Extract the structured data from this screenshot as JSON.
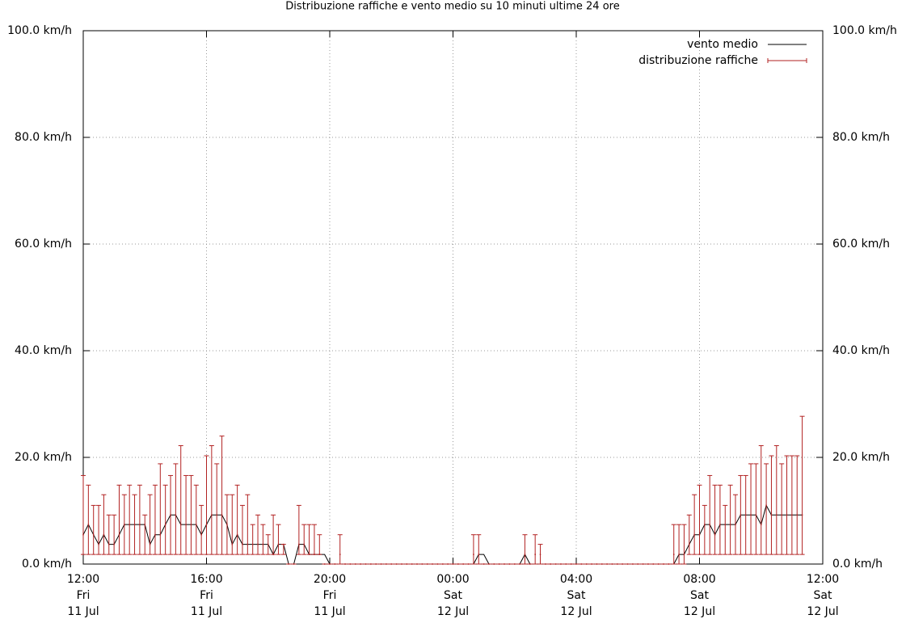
{
  "chart_data": {
    "type": "line-errorbar",
    "title": "Distribuzione raffiche e vento medio su 10 minuti ultime 24 ore",
    "x": [
      "11 Jul 12:00",
      "11 Jul 12:10",
      "11 Jul 12:20",
      "11 Jul 12:30",
      "11 Jul 12:40",
      "11 Jul 12:50",
      "11 Jul 13:00",
      "11 Jul 13:10",
      "11 Jul 13:20",
      "11 Jul 13:30",
      "11 Jul 13:40",
      "11 Jul 13:50",
      "11 Jul 14:00",
      "11 Jul 14:10",
      "11 Jul 14:20",
      "11 Jul 14:30",
      "11 Jul 14:40",
      "11 Jul 14:50",
      "11 Jul 15:00",
      "11 Jul 15:10",
      "11 Jul 15:20",
      "11 Jul 15:30",
      "11 Jul 15:40",
      "11 Jul 15:50",
      "11 Jul 16:00",
      "11 Jul 16:10",
      "11 Jul 16:20",
      "11 Jul 16:30",
      "11 Jul 16:40",
      "11 Jul 16:50",
      "11 Jul 17:00",
      "11 Jul 17:10",
      "11 Jul 17:20",
      "11 Jul 17:30",
      "11 Jul 17:40",
      "11 Jul 17:50",
      "11 Jul 18:00",
      "11 Jul 18:10",
      "11 Jul 18:20",
      "11 Jul 18:30",
      "11 Jul 18:40",
      "11 Jul 18:50",
      "11 Jul 19:00",
      "11 Jul 19:10",
      "11 Jul 19:20",
      "11 Jul 19:30",
      "11 Jul 19:40",
      "11 Jul 19:50",
      "11 Jul 20:00",
      "11 Jul 20:10",
      "11 Jul 20:20",
      "11 Jul 20:30",
      "11 Jul 20:40",
      "11 Jul 20:50",
      "11 Jul 21:00",
      "11 Jul 21:10",
      "11 Jul 21:20",
      "11 Jul 21:30",
      "11 Jul 21:40",
      "11 Jul 21:50",
      "11 Jul 22:00",
      "11 Jul 22:10",
      "11 Jul 22:20",
      "11 Jul 22:30",
      "11 Jul 22:40",
      "11 Jul 22:50",
      "11 Jul 23:00",
      "11 Jul 23:10",
      "11 Jul 23:20",
      "11 Jul 23:30",
      "11 Jul 23:40",
      "11 Jul 23:50",
      "12 Jul 00:00",
      "12 Jul 00:10",
      "12 Jul 00:20",
      "12 Jul 00:30",
      "12 Jul 00:40",
      "12 Jul 00:50",
      "12 Jul 01:00",
      "12 Jul 01:10",
      "12 Jul 01:20",
      "12 Jul 01:30",
      "12 Jul 01:40",
      "12 Jul 01:50",
      "12 Jul 02:00",
      "12 Jul 02:10",
      "12 Jul 02:20",
      "12 Jul 02:30",
      "12 Jul 02:40",
      "12 Jul 02:50",
      "12 Jul 03:00",
      "12 Jul 03:10",
      "12 Jul 03:20",
      "12 Jul 03:30",
      "12 Jul 03:40",
      "12 Jul 03:50",
      "12 Jul 04:00",
      "12 Jul 04:10",
      "12 Jul 04:20",
      "12 Jul 04:30",
      "12 Jul 04:40",
      "12 Jul 04:50",
      "12 Jul 05:00",
      "12 Jul 05:10",
      "12 Jul 05:20",
      "12 Jul 05:30",
      "12 Jul 05:40",
      "12 Jul 05:50",
      "12 Jul 06:00",
      "12 Jul 06:10",
      "12 Jul 06:20",
      "12 Jul 06:30",
      "12 Jul 06:40",
      "12 Jul 06:50",
      "12 Jul 07:00",
      "12 Jul 07:10",
      "12 Jul 07:20",
      "12 Jul 07:30",
      "12 Jul 07:40",
      "12 Jul 07:50",
      "12 Jul 08:00",
      "12 Jul 08:10",
      "12 Jul 08:20",
      "12 Jul 08:30",
      "12 Jul 08:40",
      "12 Jul 08:50",
      "12 Jul 09:00",
      "12 Jul 09:10",
      "12 Jul 09:20",
      "12 Jul 09:30",
      "12 Jul 09:40",
      "12 Jul 09:50",
      "12 Jul 10:00",
      "12 Jul 10:10",
      "12 Jul 10:20",
      "12 Jul 10:30",
      "12 Jul 10:40",
      "12 Jul 10:50",
      "12 Jul 11:00",
      "12 Jul 11:10",
      "12 Jul 11:20",
      "12 Jul 11:30",
      "12 Jul 11:40",
      "12 Jul 11:50",
      "12 Jul 12:00"
    ],
    "series": [
      {
        "name": "vento medio",
        "color": "#000000",
        "values": [
          5.5,
          7.4,
          5.5,
          3.7,
          5.5,
          3.7,
          3.7,
          5.5,
          7.4,
          7.4,
          7.4,
          7.4,
          7.4,
          3.7,
          5.5,
          5.5,
          7.4,
          9.2,
          9.2,
          7.4,
          7.4,
          7.4,
          7.4,
          5.5,
          7.4,
          9.2,
          9.2,
          9.2,
          7.4,
          3.7,
          5.5,
          3.7,
          3.7,
          3.7,
          3.7,
          3.7,
          3.7,
          1.8,
          3.7,
          3.7,
          0,
          0,
          3.7,
          3.7,
          1.8,
          1.8,
          1.8,
          1.8,
          0,
          0,
          0,
          0,
          0,
          0,
          0,
          0,
          0,
          0,
          0,
          0,
          0,
          0,
          0,
          0,
          0,
          0,
          0,
          0,
          0,
          0,
          0,
          0,
          0,
          0,
          0,
          0,
          0,
          1.8,
          1.8,
          0,
          0,
          0,
          0,
          0,
          0,
          0,
          1.8,
          0,
          0,
          0,
          0,
          0,
          0,
          0,
          0,
          0,
          0,
          0,
          0,
          0,
          0,
          0,
          0,
          0,
          0,
          0,
          0,
          0,
          0,
          0,
          0,
          0,
          0,
          0,
          0,
          0,
          1.8,
          1.8,
          3.7,
          5.5,
          5.5,
          7.4,
          7.4,
          5.5,
          7.4,
          7.4,
          7.4,
          7.4,
          9.2,
          9.2,
          9.2,
          9.2,
          7.4,
          11,
          9.2,
          9.2,
          9.2,
          9.2,
          9.2,
          9.2,
          9.2,
          null,
          null,
          null,
          null
        ]
      },
      {
        "name": "distribuzione raffiche",
        "color": "#b22222",
        "values": [
          5.5,
          7.4,
          5.5,
          3.7,
          5.5,
          3.7,
          3.7,
          5.5,
          7.4,
          7.4,
          7.4,
          7.4,
          7.4,
          3.7,
          5.5,
          5.5,
          7.4,
          9.2,
          9.2,
          7.4,
          7.4,
          7.4,
          7.4,
          5.5,
          7.4,
          9.2,
          9.2,
          9.2,
          7.4,
          3.7,
          5.5,
          3.7,
          3.7,
          3.7,
          3.7,
          3.7,
          3.7,
          1.8,
          3.7,
          3.7,
          0,
          0,
          3.7,
          3.7,
          1.8,
          1.8,
          1.8,
          0,
          0,
          0,
          1.8,
          0,
          0,
          0,
          0,
          0,
          0,
          0,
          0,
          0,
          0,
          0,
          0,
          0,
          0,
          0,
          0,
          0,
          0,
          0,
          0,
          0,
          0,
          0,
          0,
          0,
          1.8,
          1.8,
          0,
          0,
          0,
          0,
          0,
          0,
          0,
          0,
          1.8,
          0,
          1.8,
          1.8,
          0,
          0,
          0,
          0,
          0,
          0,
          0,
          0,
          0,
          0,
          0,
          0,
          0,
          0,
          0,
          0,
          0,
          0,
          0,
          0,
          0,
          0,
          0,
          0,
          0,
          1.8,
          1.8,
          1.8,
          3.7,
          5.5,
          5.5,
          7.4,
          7.4,
          5.5,
          7.4,
          7.4,
          7.4,
          7.4,
          9.2,
          9.2,
          9.2,
          9.2,
          7.4,
          11,
          9.2,
          9.2,
          9.2,
          9.2,
          9.2,
          9.2,
          9.2,
          null,
          null,
          null,
          null
        ],
        "low": [
          1.8,
          1.8,
          1.8,
          1.8,
          1.8,
          1.8,
          1.8,
          1.8,
          1.8,
          1.8,
          1.8,
          1.8,
          1.8,
          1.8,
          1.8,
          1.8,
          1.8,
          1.8,
          1.8,
          1.8,
          1.8,
          1.8,
          1.8,
          1.8,
          1.8,
          1.8,
          1.8,
          1.8,
          1.8,
          1.8,
          1.8,
          1.8,
          1.8,
          1.8,
          1.8,
          1.8,
          1.8,
          1.8,
          1.8,
          1.8,
          0,
          0,
          1.8,
          1.8,
          1.8,
          1.8,
          1.8,
          0,
          0,
          0,
          0,
          0,
          0,
          0,
          0,
          0,
          0,
          0,
          0,
          0,
          0,
          0,
          0,
          0,
          0,
          0,
          0,
          0,
          0,
          0,
          0,
          0,
          0,
          0,
          0,
          0,
          0,
          0,
          0,
          0,
          0,
          0,
          0,
          0,
          0,
          0,
          0,
          0,
          0,
          0,
          0,
          0,
          0,
          0,
          0,
          0,
          0,
          0,
          0,
          0,
          0,
          0,
          0,
          0,
          0,
          0,
          0,
          0,
          0,
          0,
          0,
          0,
          0,
          0,
          0,
          0,
          0,
          0,
          1.8,
          1.8,
          1.8,
          1.8,
          1.8,
          1.8,
          1.8,
          1.8,
          1.8,
          1.8,
          1.8,
          1.8,
          1.8,
          1.8,
          1.8,
          1.8,
          1.8,
          1.8,
          1.8,
          1.8,
          1.8,
          1.8,
          1.8,
          null,
          null,
          null,
          null
        ],
        "high": [
          16.6,
          14.8,
          11,
          11,
          13,
          9.2,
          9.2,
          14.8,
          13,
          14.8,
          13,
          14.8,
          9.2,
          13,
          14.8,
          18.8,
          14.8,
          16.6,
          18.8,
          22.2,
          16.6,
          16.6,
          14.8,
          11,
          20.3,
          22.2,
          18.8,
          24,
          13,
          13,
          14.8,
          11,
          13,
          7.4,
          9.2,
          7.4,
          5.5,
          9.2,
          7.4,
          3.7,
          0,
          0,
          11,
          7.4,
          7.4,
          7.4,
          5.5,
          0,
          0,
          0,
          5.5,
          0,
          0,
          0,
          0,
          0,
          0,
          0,
          0,
          0,
          0,
          0,
          0,
          0,
          0,
          0,
          0,
          0,
          0,
          0,
          0,
          0,
          0,
          0,
          0,
          0,
          5.5,
          5.5,
          0,
          0,
          0,
          0,
          0,
          0,
          0,
          0,
          5.5,
          0,
          5.5,
          3.7,
          0,
          0,
          0,
          0,
          0,
          0,
          0,
          0,
          0,
          0,
          0,
          0,
          0,
          0,
          0,
          0,
          0,
          0,
          0,
          0,
          0,
          0,
          0,
          0,
          0,
          7.4,
          7.4,
          7.4,
          9.2,
          13,
          14.8,
          11,
          16.6,
          14.8,
          14.8,
          11,
          14.8,
          13,
          16.6,
          16.6,
          18.8,
          18.8,
          22.2,
          18.8,
          20.3,
          22.2,
          18.8,
          20.3,
          20.3,
          20.3,
          27.7,
          null,
          null,
          null,
          null
        ]
      }
    ],
    "xlim": [
      "11 Jul 12:00",
      "12 Jul 12:00"
    ],
    "xticks": [
      {
        "value": "11 Jul 12:00",
        "label": [
          "12:00",
          "Fri",
          "11 Jul"
        ]
      },
      {
        "value": "11 Jul 16:00",
        "label": [
          "16:00",
          "Fri",
          "11 Jul"
        ]
      },
      {
        "value": "11 Jul 20:00",
        "label": [
          "20:00",
          "Fri",
          "11 Jul"
        ]
      },
      {
        "value": "12 Jul 00:00",
        "label": [
          "00:00",
          "Sat",
          "12 Jul"
        ]
      },
      {
        "value": "12 Jul 04:00",
        "label": [
          "04:00",
          "Sat",
          "12 Jul"
        ]
      },
      {
        "value": "12 Jul 08:00",
        "label": [
          "08:00",
          "Sat",
          "12 Jul"
        ]
      },
      {
        "value": "12 Jul 12:00",
        "label": [
          "12:00",
          "Sat",
          "12 Jul"
        ]
      }
    ],
    "ylim": [
      0,
      100
    ],
    "yticks": [
      {
        "value": 0,
        "label": "0.0 km/h"
      },
      {
        "value": 20,
        "label": "20.0 km/h"
      },
      {
        "value": 40,
        "label": "40.0 km/h"
      },
      {
        "value": 60,
        "label": "60.0 km/h"
      },
      {
        "value": 80,
        "label": "80.0 km/h"
      },
      {
        "value": 100,
        "label": "100.0 km/h"
      }
    ],
    "grid": true,
    "legend": "upper right"
  }
}
